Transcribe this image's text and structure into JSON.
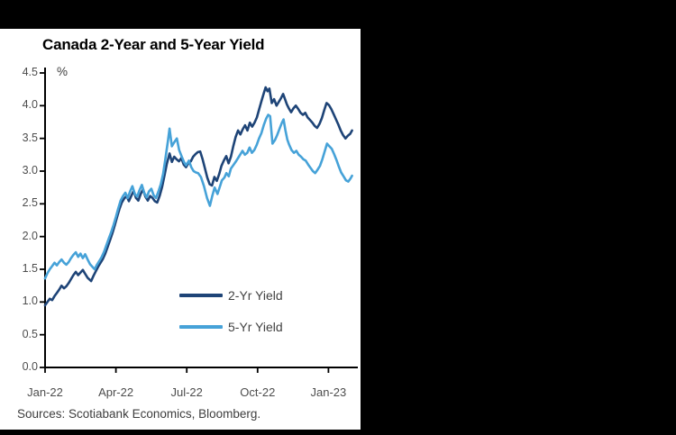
{
  "frame": {
    "background_color": "#000000",
    "panel_color": "#ffffff"
  },
  "chart": {
    "title": "Canada 2-Year and 5-Year Yield",
    "unit_label": "%",
    "sources": "Sources: Scotiabank Economics, Bloomberg."
  },
  "legend": {
    "items": [
      {
        "label": "2-Yr Yield",
        "color": "#1e4477"
      },
      {
        "label": "5-Yr Yield",
        "color": "#46a2d8"
      }
    ]
  },
  "chart_data": {
    "type": "line",
    "title": "Canada 2-Year and 5-Year Yield",
    "ylabel": "%",
    "ylim": [
      0,
      4.5
    ],
    "y_tick_step": 0.5,
    "grid": false,
    "legend_position": "inside-lower-right",
    "axis_color": "#000000",
    "y_ticks": [
      {
        "label": "4.5",
        "v": 4.5
      },
      {
        "label": "4.0",
        "v": 4.0
      },
      {
        "label": "3.5",
        "v": 3.5
      },
      {
        "label": "3.0",
        "v": 3.0
      },
      {
        "label": "2.5",
        "v": 2.5
      },
      {
        "label": "2.0",
        "v": 2.0
      },
      {
        "label": "1.5",
        "v": 1.5
      },
      {
        "label": "1.0",
        "v": 1.0
      },
      {
        "label": "0.5",
        "v": 0.5
      },
      {
        "label": "0.0",
        "v": 0.0
      }
    ],
    "x_unit": "months since Jan-2022",
    "xlim_months": [
      0,
      13
    ],
    "x_ticks": [
      {
        "label": "Jan-22",
        "m": 0
      },
      {
        "label": "Apr-22",
        "m": 3
      },
      {
        "label": "Jul-22",
        "m": 6
      },
      {
        "label": "Oct-22",
        "m": 9
      },
      {
        "label": "Jan-23",
        "m": 12
      }
    ],
    "series": [
      {
        "name": "2-Yr Yield",
        "color": "#1e4477",
        "points": [
          [
            0.0,
            0.95
          ],
          [
            0.1,
            1.0
          ],
          [
            0.2,
            1.05
          ],
          [
            0.3,
            1.03
          ],
          [
            0.4,
            1.09
          ],
          [
            0.5,
            1.14
          ],
          [
            0.6,
            1.19
          ],
          [
            0.7,
            1.25
          ],
          [
            0.8,
            1.21
          ],
          [
            0.9,
            1.24
          ],
          [
            1.0,
            1.29
          ],
          [
            1.1,
            1.35
          ],
          [
            1.2,
            1.41
          ],
          [
            1.3,
            1.46
          ],
          [
            1.4,
            1.41
          ],
          [
            1.5,
            1.45
          ],
          [
            1.6,
            1.49
          ],
          [
            1.7,
            1.43
          ],
          [
            1.8,
            1.37
          ],
          [
            1.95,
            1.32
          ],
          [
            2.05,
            1.4
          ],
          [
            2.15,
            1.47
          ],
          [
            2.25,
            1.54
          ],
          [
            2.35,
            1.6
          ],
          [
            2.45,
            1.66
          ],
          [
            2.55,
            1.74
          ],
          [
            2.65,
            1.84
          ],
          [
            2.75,
            1.94
          ],
          [
            2.85,
            2.05
          ],
          [
            2.95,
            2.17
          ],
          [
            3.05,
            2.3
          ],
          [
            3.15,
            2.42
          ],
          [
            3.25,
            2.52
          ],
          [
            3.35,
            2.58
          ],
          [
            3.45,
            2.62
          ],
          [
            3.55,
            2.54
          ],
          [
            3.65,
            2.62
          ],
          [
            3.75,
            2.7
          ],
          [
            3.85,
            2.59
          ],
          [
            3.95,
            2.55
          ],
          [
            4.05,
            2.65
          ],
          [
            4.15,
            2.72
          ],
          [
            4.25,
            2.61
          ],
          [
            4.35,
            2.55
          ],
          [
            4.45,
            2.62
          ],
          [
            4.55,
            2.59
          ],
          [
            4.65,
            2.54
          ],
          [
            4.75,
            2.52
          ],
          [
            4.85,
            2.62
          ],
          [
            4.95,
            2.75
          ],
          [
            5.05,
            2.92
          ],
          [
            5.15,
            3.1
          ],
          [
            5.27,
            3.27
          ],
          [
            5.37,
            3.14
          ],
          [
            5.47,
            3.22
          ],
          [
            5.57,
            3.18
          ],
          [
            5.67,
            3.15
          ],
          [
            5.77,
            3.2
          ],
          [
            5.87,
            3.1
          ],
          [
            5.97,
            3.06
          ],
          [
            6.07,
            3.12
          ],
          [
            6.17,
            3.15
          ],
          [
            6.27,
            3.22
          ],
          [
            6.37,
            3.26
          ],
          [
            6.47,
            3.29
          ],
          [
            6.57,
            3.3
          ],
          [
            6.67,
            3.18
          ],
          [
            6.77,
            3.04
          ],
          [
            6.87,
            2.9
          ],
          [
            6.97,
            2.8
          ],
          [
            7.07,
            2.78
          ],
          [
            7.17,
            2.91
          ],
          [
            7.27,
            2.85
          ],
          [
            7.37,
            2.95
          ],
          [
            7.47,
            3.08
          ],
          [
            7.57,
            3.16
          ],
          [
            7.67,
            3.23
          ],
          [
            7.77,
            3.12
          ],
          [
            7.87,
            3.22
          ],
          [
            7.97,
            3.38
          ],
          [
            8.07,
            3.52
          ],
          [
            8.17,
            3.62
          ],
          [
            8.27,
            3.56
          ],
          [
            8.37,
            3.64
          ],
          [
            8.47,
            3.7
          ],
          [
            8.57,
            3.62
          ],
          [
            8.67,
            3.74
          ],
          [
            8.77,
            3.68
          ],
          [
            8.87,
            3.74
          ],
          [
            8.97,
            3.82
          ],
          [
            9.07,
            3.95
          ],
          [
            9.17,
            4.08
          ],
          [
            9.27,
            4.2
          ],
          [
            9.34,
            4.28
          ],
          [
            9.42,
            4.22
          ],
          [
            9.5,
            4.26
          ],
          [
            9.6,
            4.04
          ],
          [
            9.7,
            4.1
          ],
          [
            9.8,
            4.0
          ],
          [
            9.9,
            4.06
          ],
          [
            10.0,
            4.12
          ],
          [
            10.08,
            4.18
          ],
          [
            10.16,
            4.1
          ],
          [
            10.24,
            4.02
          ],
          [
            10.32,
            3.96
          ],
          [
            10.42,
            3.9
          ],
          [
            10.52,
            3.96
          ],
          [
            10.62,
            4.0
          ],
          [
            10.72,
            3.95
          ],
          [
            10.82,
            3.89
          ],
          [
            10.92,
            3.86
          ],
          [
            11.02,
            3.89
          ],
          [
            11.12,
            3.82
          ],
          [
            11.22,
            3.78
          ],
          [
            11.32,
            3.74
          ],
          [
            11.42,
            3.69
          ],
          [
            11.52,
            3.66
          ],
          [
            11.62,
            3.72
          ],
          [
            11.72,
            3.81
          ],
          [
            11.82,
            3.93
          ],
          [
            11.92,
            4.04
          ],
          [
            12.02,
            4.01
          ],
          [
            12.12,
            3.95
          ],
          [
            12.22,
            3.87
          ],
          [
            12.32,
            3.79
          ],
          [
            12.42,
            3.71
          ],
          [
            12.52,
            3.62
          ],
          [
            12.62,
            3.55
          ],
          [
            12.72,
            3.5
          ],
          [
            12.82,
            3.54
          ],
          [
            12.92,
            3.57
          ],
          [
            13.0,
            3.62
          ]
        ]
      },
      {
        "name": "5-Yr Yield",
        "color": "#46a2d8",
        "points": [
          [
            0.0,
            1.36
          ],
          [
            0.1,
            1.44
          ],
          [
            0.2,
            1.5
          ],
          [
            0.3,
            1.55
          ],
          [
            0.4,
            1.6
          ],
          [
            0.5,
            1.56
          ],
          [
            0.6,
            1.61
          ],
          [
            0.7,
            1.65
          ],
          [
            0.8,
            1.6
          ],
          [
            0.9,
            1.57
          ],
          [
            1.0,
            1.61
          ],
          [
            1.1,
            1.67
          ],
          [
            1.2,
            1.72
          ],
          [
            1.3,
            1.76
          ],
          [
            1.4,
            1.69
          ],
          [
            1.5,
            1.74
          ],
          [
            1.6,
            1.67
          ],
          [
            1.7,
            1.73
          ],
          [
            1.8,
            1.65
          ],
          [
            1.9,
            1.58
          ],
          [
            2.0,
            1.54
          ],
          [
            2.1,
            1.5
          ],
          [
            2.2,
            1.57
          ],
          [
            2.3,
            1.63
          ],
          [
            2.4,
            1.69
          ],
          [
            2.5,
            1.77
          ],
          [
            2.6,
            1.87
          ],
          [
            2.7,
            1.97
          ],
          [
            2.8,
            2.07
          ],
          [
            2.9,
            2.18
          ],
          [
            3.0,
            2.3
          ],
          [
            3.1,
            2.43
          ],
          [
            3.2,
            2.55
          ],
          [
            3.3,
            2.62
          ],
          [
            3.4,
            2.67
          ],
          [
            3.5,
            2.59
          ],
          [
            3.6,
            2.69
          ],
          [
            3.7,
            2.77
          ],
          [
            3.8,
            2.65
          ],
          [
            3.9,
            2.61
          ],
          [
            4.0,
            2.71
          ],
          [
            4.1,
            2.79
          ],
          [
            4.2,
            2.67
          ],
          [
            4.3,
            2.6
          ],
          [
            4.4,
            2.69
          ],
          [
            4.5,
            2.73
          ],
          [
            4.6,
            2.63
          ],
          [
            4.7,
            2.59
          ],
          [
            4.8,
            2.69
          ],
          [
            4.9,
            2.8
          ],
          [
            5.0,
            2.96
          ],
          [
            5.1,
            3.2
          ],
          [
            5.2,
            3.45
          ],
          [
            5.27,
            3.65
          ],
          [
            5.37,
            3.38
          ],
          [
            5.47,
            3.44
          ],
          [
            5.58,
            3.5
          ],
          [
            5.68,
            3.32
          ],
          [
            5.78,
            3.23
          ],
          [
            5.88,
            3.14
          ],
          [
            5.97,
            3.09
          ],
          [
            6.09,
            3.16
          ],
          [
            6.19,
            3.06
          ],
          [
            6.29,
            3.0
          ],
          [
            6.39,
            2.98
          ],
          [
            6.48,
            2.97
          ],
          [
            6.6,
            2.91
          ],
          [
            6.73,
            2.77
          ],
          [
            6.86,
            2.59
          ],
          [
            6.98,
            2.47
          ],
          [
            7.08,
            2.62
          ],
          [
            7.18,
            2.75
          ],
          [
            7.3,
            2.65
          ],
          [
            7.4,
            2.76
          ],
          [
            7.49,
            2.86
          ],
          [
            7.59,
            2.9
          ],
          [
            7.68,
            2.97
          ],
          [
            7.78,
            2.92
          ],
          [
            7.87,
            3.04
          ],
          [
            7.97,
            3.09
          ],
          [
            8.07,
            3.14
          ],
          [
            8.17,
            3.2
          ],
          [
            8.26,
            3.25
          ],
          [
            8.36,
            3.31
          ],
          [
            8.46,
            3.25
          ],
          [
            8.56,
            3.28
          ],
          [
            8.66,
            3.36
          ],
          [
            8.76,
            3.28
          ],
          [
            8.86,
            3.32
          ],
          [
            8.96,
            3.4
          ],
          [
            9.06,
            3.5
          ],
          [
            9.16,
            3.58
          ],
          [
            9.26,
            3.7
          ],
          [
            9.36,
            3.8
          ],
          [
            9.45,
            3.86
          ],
          [
            9.53,
            3.84
          ],
          [
            9.63,
            3.42
          ],
          [
            9.73,
            3.47
          ],
          [
            9.83,
            3.55
          ],
          [
            9.93,
            3.65
          ],
          [
            10.03,
            3.74
          ],
          [
            10.1,
            3.79
          ],
          [
            10.18,
            3.62
          ],
          [
            10.26,
            3.48
          ],
          [
            10.34,
            3.4
          ],
          [
            10.44,
            3.32
          ],
          [
            10.54,
            3.28
          ],
          [
            10.64,
            3.31
          ],
          [
            10.74,
            3.25
          ],
          [
            10.84,
            3.22
          ],
          [
            10.94,
            3.18
          ],
          [
            11.04,
            3.16
          ],
          [
            11.14,
            3.1
          ],
          [
            11.24,
            3.05
          ],
          [
            11.34,
            3.0
          ],
          [
            11.44,
            2.97
          ],
          [
            11.54,
            3.02
          ],
          [
            11.64,
            3.08
          ],
          [
            11.74,
            3.18
          ],
          [
            11.84,
            3.3
          ],
          [
            11.94,
            3.42
          ],
          [
            12.04,
            3.38
          ],
          [
            12.14,
            3.34
          ],
          [
            12.24,
            3.26
          ],
          [
            12.34,
            3.17
          ],
          [
            12.44,
            3.07
          ],
          [
            12.54,
            2.98
          ],
          [
            12.64,
            2.92
          ],
          [
            12.74,
            2.86
          ],
          [
            12.84,
            2.84
          ],
          [
            12.94,
            2.89
          ],
          [
            13.0,
            2.93
          ]
        ]
      }
    ]
  }
}
